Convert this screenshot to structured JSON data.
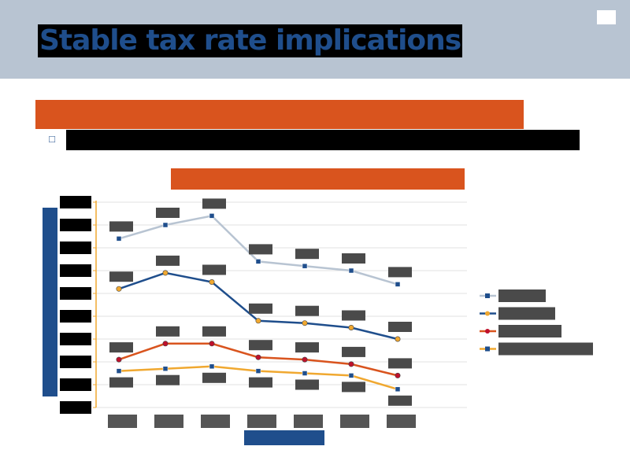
{
  "slide": {
    "title": "Stable tax rate implications",
    "subtitle": "",
    "bullet_icon": "bullet-square-icon",
    "bullet_text": ""
  },
  "colors": {
    "header_band": "#b8c4d2",
    "title_text": "#1f4e8c",
    "accent_orange": "#d9541e",
    "axis_label_blue": "#1f4e8c",
    "label_box": "#4a4a4a"
  },
  "chart_data": {
    "type": "line",
    "title": "",
    "xlabel": "",
    "ylabel": "",
    "categories": [
      "",
      "",
      "",
      "",
      "",
      "",
      ""
    ],
    "y_tick_count": 10,
    "ylim": [
      0,
      9
    ],
    "grid": true,
    "legend_position": "right",
    "series": [
      {
        "name": "",
        "color": "#b8c4d2",
        "marker": "square",
        "marker_color": "#1f4e8c",
        "values": [
          7.4,
          8.0,
          8.4,
          6.4,
          6.2,
          6.0,
          5.4
        ]
      },
      {
        "name": "",
        "color": "#1f4e8c",
        "marker": "circle",
        "marker_color": "#f0a830",
        "values": [
          5.2,
          5.9,
          5.5,
          3.8,
          3.7,
          3.5,
          3.0
        ]
      },
      {
        "name": "",
        "color": "#d9541e",
        "marker": "circle",
        "marker_color": "#c0102c",
        "values": [
          2.1,
          2.8,
          2.8,
          2.2,
          2.1,
          1.9,
          1.4
        ]
      },
      {
        "name": "",
        "color": "#f0a830",
        "marker": "square",
        "marker_color": "#1f4e8c",
        "values": [
          1.6,
          1.7,
          1.8,
          1.6,
          1.5,
          1.4,
          0.8
        ]
      }
    ]
  }
}
